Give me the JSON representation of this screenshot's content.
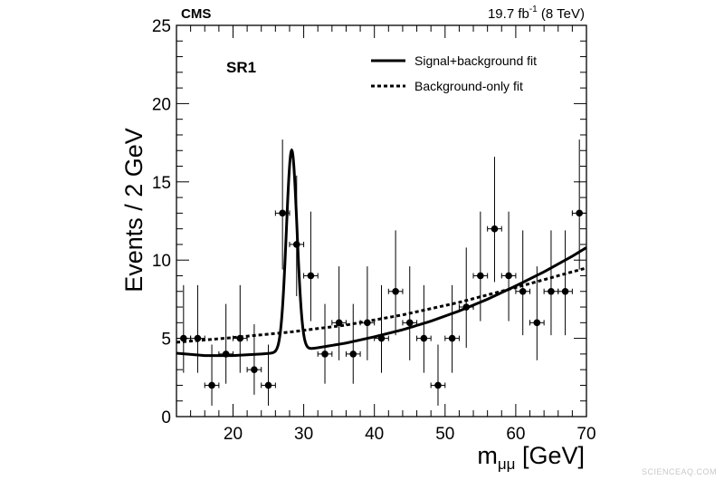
{
  "chart_data": {
    "type": "scatter",
    "experiment_label": "CMS",
    "lumi_label": "19.7 fb",
    "lumi_exponent": "-1",
    "energy_label": " (8 TeV)",
    "region_label": "SR1",
    "ylabel": "Events / 2 GeV",
    "xlabel_main": "m",
    "xlabel_sub": "μμ",
    "xlabel_unit": " [GeV]",
    "xlim": [
      12,
      70
    ],
    "ylim": [
      0,
      25
    ],
    "x_ticks": [
      20,
      30,
      40,
      50,
      60,
      70
    ],
    "y_ticks": [
      0,
      5,
      10,
      15,
      20,
      25
    ],
    "legend_placement": "top-right",
    "grid": false,
    "series": [
      {
        "name": "Data",
        "style": "points-with-errorbars",
        "points": [
          {
            "x": 13,
            "y": 5,
            "yerr_low": 2.2,
            "yerr_high": 3.4
          },
          {
            "x": 15,
            "y": 5,
            "yerr_low": 2.2,
            "yerr_high": 3.4
          },
          {
            "x": 17,
            "y": 2,
            "yerr_low": 1.3,
            "yerr_high": 2.6
          },
          {
            "x": 19,
            "y": 4,
            "yerr_low": 1.9,
            "yerr_high": 3.2
          },
          {
            "x": 21,
            "y": 5,
            "yerr_low": 2.2,
            "yerr_high": 3.4
          },
          {
            "x": 23,
            "y": 3,
            "yerr_low": 1.6,
            "yerr_high": 2.9
          },
          {
            "x": 25,
            "y": 2,
            "yerr_low": 1.3,
            "yerr_high": 2.6
          },
          {
            "x": 27,
            "y": 13,
            "yerr_low": 3.6,
            "yerr_high": 4.7
          },
          {
            "x": 29,
            "y": 11,
            "yerr_low": 3.3,
            "yerr_high": 4.4
          },
          {
            "x": 31,
            "y": 9,
            "yerr_low": 2.9,
            "yerr_high": 4.1
          },
          {
            "x": 33,
            "y": 4,
            "yerr_low": 1.9,
            "yerr_high": 3.2
          },
          {
            "x": 35,
            "y": 6,
            "yerr_low": 2.4,
            "yerr_high": 3.6
          },
          {
            "x": 37,
            "y": 4,
            "yerr_low": 1.9,
            "yerr_high": 3.2
          },
          {
            "x": 39,
            "y": 6,
            "yerr_low": 2.4,
            "yerr_high": 3.6
          },
          {
            "x": 41,
            "y": 5,
            "yerr_low": 2.2,
            "yerr_high": 3.4
          },
          {
            "x": 43,
            "y": 8,
            "yerr_low": 2.8,
            "yerr_high": 3.9
          },
          {
            "x": 45,
            "y": 6,
            "yerr_low": 2.4,
            "yerr_high": 3.6
          },
          {
            "x": 47,
            "y": 5,
            "yerr_low": 2.2,
            "yerr_high": 3.4
          },
          {
            "x": 49,
            "y": 2,
            "yerr_low": 1.3,
            "yerr_high": 2.6
          },
          {
            "x": 51,
            "y": 5,
            "yerr_low": 2.2,
            "yerr_high": 3.4
          },
          {
            "x": 53,
            "y": 7,
            "yerr_low": 2.6,
            "yerr_high": 3.8
          },
          {
            "x": 55,
            "y": 9,
            "yerr_low": 2.9,
            "yerr_high": 4.1
          },
          {
            "x": 57,
            "y": 12,
            "yerr_low": 3.4,
            "yerr_high": 4.6
          },
          {
            "x": 59,
            "y": 9,
            "yerr_low": 2.9,
            "yerr_high": 4.1
          },
          {
            "x": 61,
            "y": 8,
            "yerr_low": 2.8,
            "yerr_high": 3.9
          },
          {
            "x": 63,
            "y": 6,
            "yerr_low": 2.4,
            "yerr_high": 3.6
          },
          {
            "x": 65,
            "y": 8,
            "yerr_low": 2.8,
            "yerr_high": 3.9
          },
          {
            "x": 67,
            "y": 8,
            "yerr_low": 2.8,
            "yerr_high": 3.9
          },
          {
            "x": 69,
            "y": 13,
            "yerr_low": 3.6,
            "yerr_high": 4.7
          }
        ]
      },
      {
        "name": "Signal+background fit",
        "style": "solid",
        "curve": {
          "background_points": [
            [
              12,
              4.05
            ],
            [
              16,
              3.9
            ],
            [
              20,
              3.9
            ],
            [
              24,
              4.0
            ],
            [
              28,
              4.15
            ],
            [
              32,
              4.4
            ],
            [
              36,
              4.7
            ],
            [
              40,
              5.1
            ],
            [
              44,
              5.55
            ],
            [
              48,
              6.1
            ],
            [
              52,
              6.75
            ],
            [
              56,
              7.5
            ],
            [
              60,
              8.35
            ],
            [
              64,
              9.25
            ],
            [
              68,
              10.25
            ],
            [
              70,
              10.8
            ]
          ],
          "peak_x": 28.3,
          "peak_height": 12.85,
          "peak_width": 0.75
        }
      },
      {
        "name": "Background-only fit",
        "style": "dashed",
        "curve": {
          "points": [
            [
              12,
              4.75
            ],
            [
              20,
              5.05
            ],
            [
              28,
              5.4
            ],
            [
              36,
              5.85
            ],
            [
              44,
              6.5
            ],
            [
              52,
              7.3
            ],
            [
              60,
              8.25
            ],
            [
              70,
              9.5
            ]
          ]
        }
      }
    ]
  },
  "watermark_text": "SCIENCEAQ.COM"
}
